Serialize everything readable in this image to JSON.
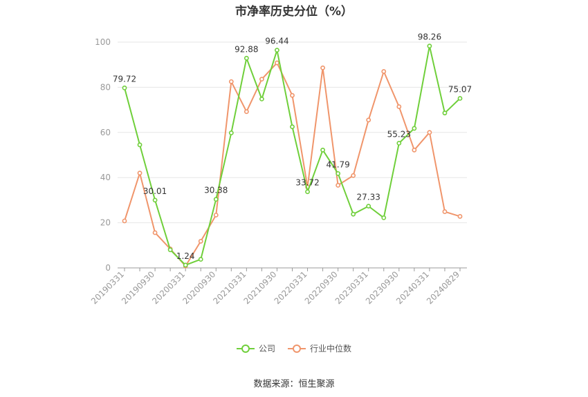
{
  "title": "市净率历史分位（%）",
  "source": "数据来源：恒生聚源",
  "colors": {
    "company": "#6fcf3a",
    "industry": "#f0956b",
    "grid": "#e6e6e6",
    "axis": "#999999",
    "tick_text": "#999999"
  },
  "chart_data": {
    "type": "line",
    "title": "市净率历史分位（%）",
    "ylim": [
      0,
      100
    ],
    "yticks": [
      0,
      20,
      40,
      60,
      80,
      100
    ],
    "grid": true,
    "legend_position": "bottom-center",
    "x_tick_labels": [
      "20190331",
      "20190930",
      "20200331",
      "20200930",
      "20210331",
      "20210930",
      "20220331",
      "20220930",
      "20230331",
      "20230930",
      "20240331",
      "20240829"
    ],
    "x": [
      "20190331",
      "20190630",
      "20190930",
      "20191231",
      "20200331",
      "20200630",
      "20200930",
      "20201231",
      "20210331",
      "20210630",
      "20210930",
      "20211231",
      "20220331",
      "20220630",
      "20220930",
      "20221231",
      "20230331",
      "20230630",
      "20230930",
      "20231231",
      "20240331",
      "20240630",
      "20240829"
    ],
    "series": [
      {
        "name": "公司",
        "values": [
          79.72,
          54.5,
          30.01,
          8.0,
          1.24,
          3.8,
          30.38,
          59.8,
          92.88,
          74.8,
          96.44,
          62.5,
          33.72,
          52.2,
          41.79,
          23.8,
          27.33,
          22.2,
          55.23,
          61.8,
          98.26,
          68.6,
          75.07
        ],
        "labels": {
          "0": "79.72",
          "2": "30.01",
          "4": "1.24",
          "6": "30.38",
          "8": "92.88",
          "10": "96.44",
          "12": "33.72",
          "14": "41.79",
          "16": "27.33",
          "18": "55.23",
          "20": "98.26",
          "22": "75.07"
        }
      },
      {
        "name": "行业中位数",
        "values": [
          20.8,
          42.0,
          15.6,
          8.4,
          0.8,
          11.8,
          23.4,
          82.5,
          69.2,
          83.6,
          90.8,
          76.4,
          35.8,
          88.6,
          36.6,
          40.9,
          65.5,
          87.0,
          71.4,
          52.2,
          60.0,
          24.9,
          22.8
        ]
      }
    ]
  }
}
